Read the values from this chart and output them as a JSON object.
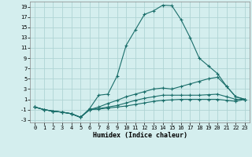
{
  "xlabel": "Humidex (Indice chaleur)",
  "background_color": "#d4eeee",
  "grid_color": "#afd4d4",
  "line_color": "#1a6e6a",
  "xlim": [
    -0.5,
    23.5
  ],
  "ylim": [
    -3.5,
    20.0
  ],
  "yticks": [
    -3,
    -1,
    1,
    3,
    5,
    7,
    9,
    11,
    13,
    15,
    17,
    19
  ],
  "xticks": [
    0,
    1,
    2,
    3,
    4,
    5,
    6,
    7,
    8,
    9,
    10,
    11,
    12,
    13,
    14,
    15,
    16,
    17,
    18,
    19,
    20,
    21,
    22,
    23
  ],
  "series": [
    {
      "x": [
        0,
        1,
        2,
        3,
        4,
        5,
        6,
        7,
        8,
        9,
        10,
        11,
        12,
        13,
        14,
        15,
        16,
        17,
        18,
        19,
        20,
        21,
        22,
        23
      ],
      "y": [
        -0.5,
        -1.0,
        -1.3,
        -1.5,
        -1.8,
        -2.5,
        -0.8,
        1.8,
        2.0,
        5.5,
        11.5,
        14.5,
        17.5,
        18.2,
        19.3,
        19.2,
        16.5,
        13.0,
        9.0,
        7.5,
        6.0,
        3.5,
        1.5,
        1.0
      ]
    },
    {
      "x": [
        0,
        1,
        2,
        3,
        4,
        5,
        6,
        7,
        8,
        9,
        10,
        11,
        12,
        13,
        14,
        15,
        16,
        17,
        18,
        19,
        20,
        21,
        22,
        23
      ],
      "y": [
        -0.5,
        -1.0,
        -1.3,
        -1.5,
        -1.8,
        -2.5,
        -1.0,
        -0.5,
        0.2,
        0.8,
        1.5,
        2.0,
        2.5,
        3.0,
        3.2,
        3.0,
        3.5,
        4.0,
        4.5,
        5.0,
        5.3,
        3.5,
        1.5,
        1.0
      ]
    },
    {
      "x": [
        0,
        1,
        2,
        3,
        4,
        5,
        6,
        7,
        8,
        9,
        10,
        11,
        12,
        13,
        14,
        15,
        16,
        17,
        18,
        19,
        20,
        21,
        22,
        23
      ],
      "y": [
        -0.5,
        -1.0,
        -1.3,
        -1.5,
        -1.8,
        -2.5,
        -1.0,
        -0.8,
        -0.5,
        -0.2,
        0.3,
        0.8,
        1.2,
        1.5,
        1.8,
        1.8,
        1.8,
        1.8,
        1.8,
        1.9,
        2.0,
        1.5,
        1.0,
        1.0
      ]
    },
    {
      "x": [
        0,
        1,
        2,
        3,
        4,
        5,
        6,
        7,
        8,
        9,
        10,
        11,
        12,
        13,
        14,
        15,
        16,
        17,
        18,
        19,
        20,
        21,
        22,
        23
      ],
      "y": [
        -0.5,
        -1.0,
        -1.3,
        -1.5,
        -1.8,
        -2.5,
        -1.0,
        -0.9,
        -0.7,
        -0.5,
        -0.3,
        0.0,
        0.3,
        0.6,
        0.8,
        0.9,
        1.0,
        1.0,
        1.0,
        1.0,
        1.0,
        0.8,
        0.6,
        1.0
      ]
    }
  ]
}
